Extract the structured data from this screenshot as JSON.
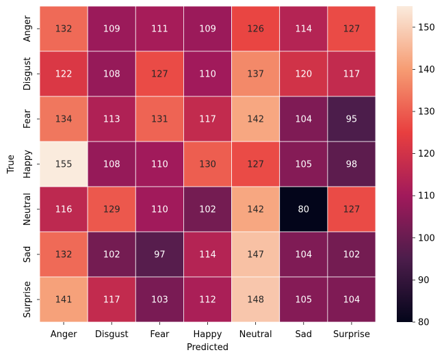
{
  "chart_data": {
    "type": "heatmap",
    "title": "",
    "xlabel": "Predicted",
    "ylabel": "True",
    "x_categories": [
      "Anger",
      "Disgust",
      "Fear",
      "Happy",
      "Neutral",
      "Sad",
      "Surprise"
    ],
    "y_categories": [
      "Anger",
      "Disgust",
      "Fear",
      "Happy",
      "Neutral",
      "Sad",
      "Surprise"
    ],
    "values": [
      [
        132,
        109,
        111,
        109,
        126,
        114,
        127
      ],
      [
        122,
        108,
        127,
        110,
        137,
        120,
        117
      ],
      [
        134,
        113,
        131,
        117,
        142,
        104,
        95
      ],
      [
        155,
        108,
        110,
        130,
        127,
        105,
        98
      ],
      [
        116,
        129,
        110,
        102,
        142,
        80,
        127
      ],
      [
        132,
        102,
        97,
        114,
        147,
        104,
        102
      ],
      [
        141,
        117,
        103,
        112,
        148,
        105,
        104
      ]
    ],
    "colorbar": {
      "min": 80,
      "max": 155,
      "ticks": [
        80,
        90,
        100,
        110,
        120,
        130,
        140,
        150
      ]
    },
    "colormap": [
      "#03051a",
      "#4c1d4b",
      "#a11a5b",
      "#e83f3f",
      "#f69c73",
      "#faebdd"
    ]
  }
}
